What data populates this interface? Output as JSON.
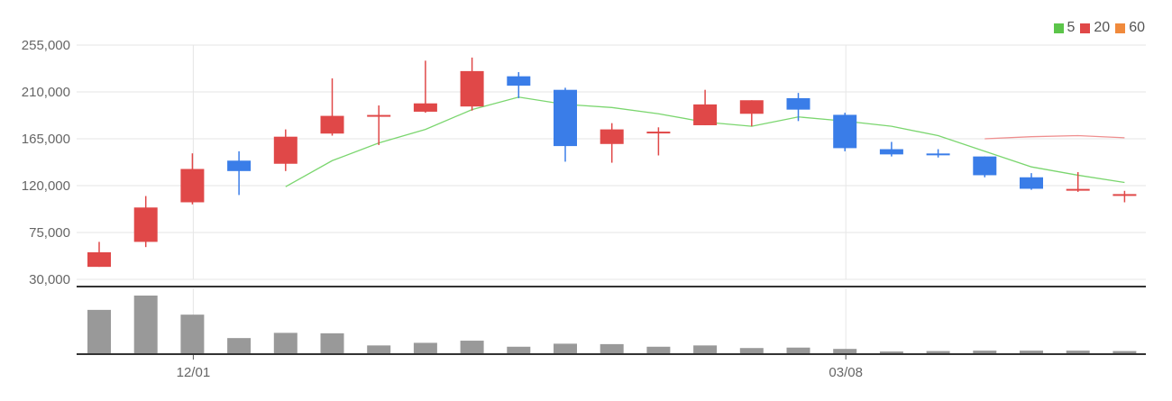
{
  "chart_data": {
    "type": "candlestick",
    "y_ticks": [
      "255,000",
      "210,000",
      "165,000",
      "120,000",
      "75,000",
      "30,000"
    ],
    "y_tick_values": [
      255000,
      210000,
      165000,
      120000,
      75000,
      30000
    ],
    "ylim": [
      30000,
      255000
    ],
    "x_tick_labels": [
      {
        "label": "12/01",
        "index": 2
      },
      {
        "label": "03/08",
        "index": 16
      }
    ],
    "grid": true,
    "legend_placement": "top-right",
    "legend": [
      {
        "label": "5",
        "color": "#5cc54a"
      },
      {
        "label": "20",
        "color": "#e04848"
      },
      {
        "label": "60",
        "color": "#f08a3c"
      }
    ],
    "colors": {
      "up": "#e04848",
      "down": "#3a7de8",
      "ma5": "#7bd66f",
      "ma20": "#ef8f8f",
      "volume": "#999999"
    },
    "candles": [
      {
        "open": 42000,
        "close": 56000,
        "high": 66000,
        "low": 42000
      },
      {
        "open": 66000,
        "close": 99000,
        "high": 110000,
        "low": 61000
      },
      {
        "open": 104000,
        "close": 136000,
        "high": 151000,
        "low": 102000
      },
      {
        "open": 144000,
        "close": 134000,
        "high": 153000,
        "low": 111000
      },
      {
        "open": 141000,
        "close": 167000,
        "high": 174000,
        "low": 134000
      },
      {
        "open": 170000,
        "close": 187000,
        "high": 223000,
        "low": 168000
      },
      {
        "open": 186000,
        "close": 187000,
        "high": 197000,
        "low": 159000
      },
      {
        "open": 191000,
        "close": 199000,
        "high": 240000,
        "low": 190000
      },
      {
        "open": 196000,
        "close": 230000,
        "high": 243000,
        "low": 192000
      },
      {
        "open": 225000,
        "close": 216000,
        "high": 229000,
        "low": 204000
      },
      {
        "open": 212000,
        "close": 158000,
        "high": 214000,
        "low": 143000
      },
      {
        "open": 160000,
        "close": 174000,
        "high": 180000,
        "low": 142000
      },
      {
        "open": 170000,
        "close": 171000,
        "high": 176000,
        "low": 149000
      },
      {
        "open": 178000,
        "close": 198000,
        "high": 212000,
        "low": 178000
      },
      {
        "open": 189000,
        "close": 202000,
        "high": 202000,
        "low": 177000
      },
      {
        "open": 204000,
        "close": 193000,
        "high": 209000,
        "low": 182000
      },
      {
        "open": 188000,
        "close": 156000,
        "high": 190000,
        "low": 153000
      },
      {
        "open": 155000,
        "close": 150000,
        "high": 162000,
        "low": 148000
      },
      {
        "open": 150000,
        "close": 149000,
        "high": 155000,
        "low": 147000
      },
      {
        "open": 148000,
        "close": 130000,
        "high": 148000,
        "low": 128000
      },
      {
        "open": 128000,
        "close": 117000,
        "high": 132000,
        "low": 116000
      },
      {
        "open": 116000,
        "close": 116000,
        "high": 133000,
        "low": 114000
      },
      {
        "open": 111000,
        "close": 111000,
        "high": 115000,
        "low": 104000
      }
    ],
    "ma5": [
      null,
      null,
      null,
      null,
      119000,
      144000,
      161000,
      174000,
      193000,
      205000,
      198000,
      195000,
      189000,
      181000,
      177000,
      186000,
      182000,
      177000,
      168000,
      153000,
      138000,
      130000,
      123000
    ],
    "ma20": [
      null,
      null,
      null,
      null,
      null,
      null,
      null,
      null,
      null,
      null,
      null,
      null,
      null,
      null,
      null,
      null,
      null,
      null,
      null,
      165000,
      167000,
      168000,
      166000
    ],
    "volume": [
      100,
      133,
      89,
      35,
      47,
      46,
      18,
      24,
      29,
      15,
      22,
      21,
      15,
      18,
      12,
      13,
      10,
      4,
      5,
      6,
      6,
      6,
      5
    ]
  }
}
